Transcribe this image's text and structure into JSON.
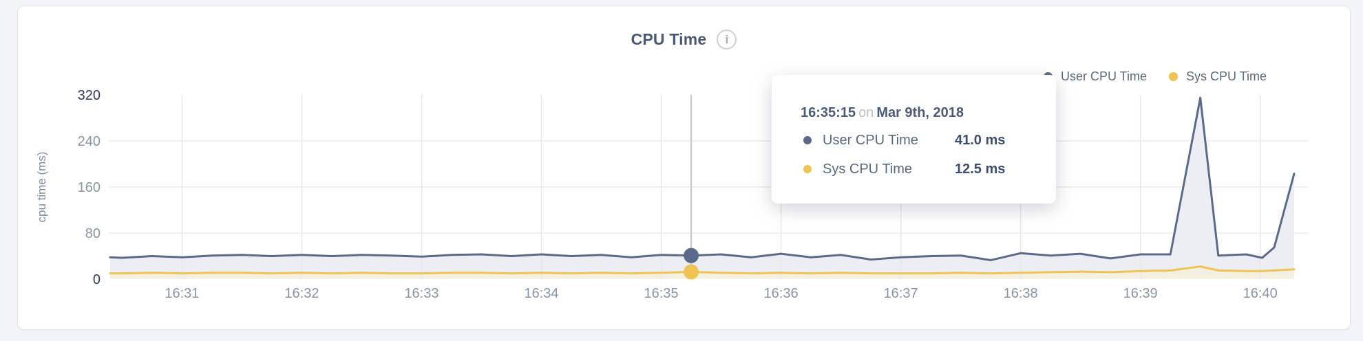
{
  "header": {
    "title": "CPU Time",
    "info_glyph": "i"
  },
  "legend": {
    "items": [
      {
        "label": "User CPU Time",
        "color": "#5b6a88"
      },
      {
        "label": "Sys CPU Time",
        "color": "#eec353"
      }
    ]
  },
  "tooltip": {
    "time": "16:35:15",
    "connector": "on",
    "date": "Mar 9th, 2018",
    "rows": [
      {
        "label": "User CPU Time",
        "value": "41.0 ms",
        "color": "#5b6a88"
      },
      {
        "label": "Sys CPU Time",
        "value": "12.5 ms",
        "color": "#eec353"
      }
    ]
  },
  "chart_data": {
    "type": "area",
    "title": "CPU Time",
    "xlabel": "",
    "ylabel": "cpu time (ms)",
    "x_unit": "seconds after 16:30:00 on Mar 9th, 2018",
    "xlim": [
      24,
      617
    ],
    "ylim": [
      0,
      320
    ],
    "yticks": [
      0,
      80,
      160,
      240,
      320
    ],
    "xticks": [
      {
        "t": 60,
        "label": "16:31"
      },
      {
        "t": 120,
        "label": "16:32"
      },
      {
        "t": 180,
        "label": "16:33"
      },
      {
        "t": 240,
        "label": "16:34"
      },
      {
        "t": 300,
        "label": "16:35"
      },
      {
        "t": 360,
        "label": "16:36"
      },
      {
        "t": 420,
        "label": "16:37"
      },
      {
        "t": 480,
        "label": "16:38"
      },
      {
        "t": 540,
        "label": "16:39"
      },
      {
        "t": 600,
        "label": "16:40"
      }
    ],
    "grid": true,
    "legend_position": "top-right",
    "series": [
      {
        "name": "User CPU Time",
        "color": "#5b6a88",
        "fill": "#eceef3",
        "points": [
          [
            24,
            38
          ],
          [
            30,
            37
          ],
          [
            45,
            40
          ],
          [
            60,
            38
          ],
          [
            75,
            41
          ],
          [
            90,
            42
          ],
          [
            105,
            40
          ],
          [
            120,
            42
          ],
          [
            135,
            40
          ],
          [
            150,
            42
          ],
          [
            165,
            41
          ],
          [
            180,
            39
          ],
          [
            195,
            42
          ],
          [
            210,
            43
          ],
          [
            225,
            40
          ],
          [
            240,
            43
          ],
          [
            255,
            40
          ],
          [
            270,
            42
          ],
          [
            285,
            38
          ],
          [
            300,
            42
          ],
          [
            315,
            41
          ],
          [
            330,
            43
          ],
          [
            345,
            38
          ],
          [
            360,
            44
          ],
          [
            375,
            38
          ],
          [
            390,
            42
          ],
          [
            405,
            34
          ],
          [
            420,
            38
          ],
          [
            435,
            40
          ],
          [
            450,
            41
          ],
          [
            465,
            33
          ],
          [
            480,
            45
          ],
          [
            495,
            41
          ],
          [
            510,
            44
          ],
          [
            525,
            36
          ],
          [
            540,
            43
          ],
          [
            555,
            43
          ],
          [
            570,
            315
          ],
          [
            579,
            41
          ],
          [
            593,
            43
          ],
          [
            601,
            37
          ],
          [
            607,
            55
          ],
          [
            617,
            183
          ]
        ]
      },
      {
        "name": "Sys CPU Time",
        "color": "#eec353",
        "fill": "#f3f0e2",
        "points": [
          [
            24,
            10
          ],
          [
            30,
            10
          ],
          [
            45,
            11
          ],
          [
            60,
            10
          ],
          [
            75,
            11
          ],
          [
            90,
            11
          ],
          [
            105,
            10
          ],
          [
            120,
            11
          ],
          [
            135,
            10
          ],
          [
            150,
            11
          ],
          [
            165,
            10
          ],
          [
            180,
            10
          ],
          [
            195,
            11
          ],
          [
            210,
            11
          ],
          [
            225,
            10
          ],
          [
            240,
            11
          ],
          [
            255,
            10
          ],
          [
            270,
            11
          ],
          [
            285,
            10
          ],
          [
            300,
            11
          ],
          [
            315,
            12.5
          ],
          [
            330,
            11
          ],
          [
            345,
            10
          ],
          [
            360,
            11
          ],
          [
            375,
            10
          ],
          [
            390,
            11
          ],
          [
            405,
            10
          ],
          [
            420,
            10
          ],
          [
            435,
            10
          ],
          [
            450,
            11
          ],
          [
            465,
            10
          ],
          [
            480,
            11
          ],
          [
            495,
            12
          ],
          [
            510,
            13
          ],
          [
            525,
            12
          ],
          [
            540,
            14
          ],
          [
            555,
            15
          ],
          [
            570,
            22
          ],
          [
            579,
            15
          ],
          [
            593,
            14
          ],
          [
            601,
            14
          ],
          [
            607,
            15
          ],
          [
            617,
            17
          ]
        ]
      }
    ],
    "highlight": {
      "t": 315,
      "time": "16:35:15",
      "date": "Mar 9th, 2018",
      "values": {
        "User CPU Time": 41.0,
        "Sys CPU Time": 12.5
      }
    }
  }
}
